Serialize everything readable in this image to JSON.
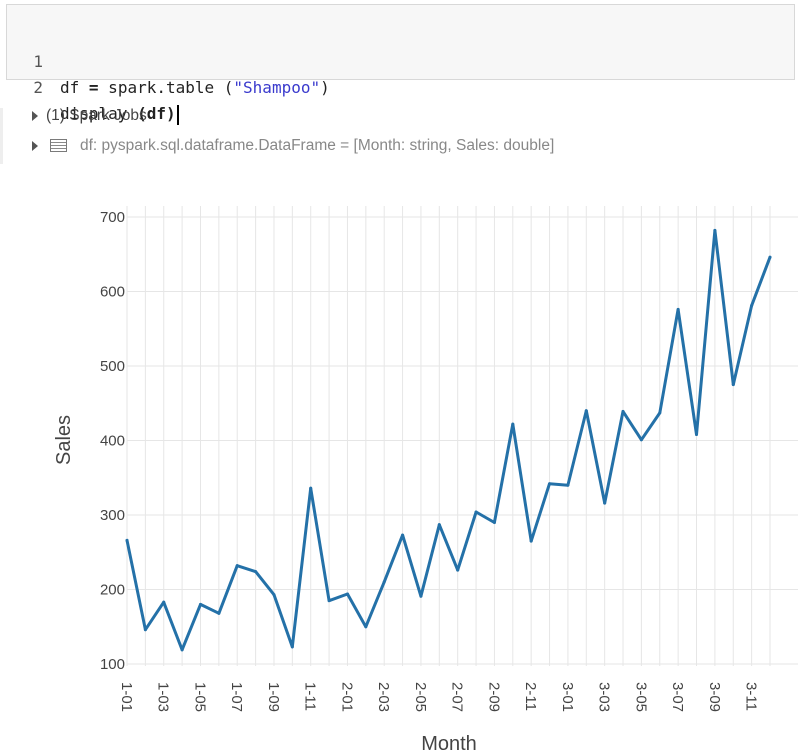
{
  "code_cell": {
    "line_numbers": [
      "1",
      "2"
    ],
    "line1": {
      "a": "df ",
      "op": "=",
      "b": " spark.table (",
      "str": "\"Shampoo\"",
      "c": ")"
    },
    "line2": {
      "a": "display ",
      "op": "(df)"
    }
  },
  "output": {
    "spark_jobs": "(1) Spark Jobs",
    "df_schema": "df:  pyspark.sql.dataframe.DataFrame = [Month: string, Sales: double]"
  },
  "colors": {
    "line": "#2471a8",
    "grid": "#e6e6e6"
  },
  "chart_data": {
    "type": "line",
    "xlabel": "Month",
    "ylabel": "Sales",
    "ylim": [
      100,
      700
    ],
    "yticks": [
      "100",
      "200",
      "300",
      "400",
      "500",
      "600",
      "700"
    ],
    "grid": true,
    "x": [
      "1-01",
      "1-02",
      "1-03",
      "1-04",
      "1-05",
      "1-06",
      "1-07",
      "1-08",
      "1-09",
      "1-10",
      "1-11",
      "1-12",
      "2-01",
      "2-02",
      "2-03",
      "2-04",
      "2-05",
      "2-06",
      "2-07",
      "2-08",
      "2-09",
      "2-10",
      "2-11",
      "2-12",
      "3-01",
      "3-02",
      "3-03",
      "3-04",
      "3-05",
      "3-06",
      "3-07",
      "3-08",
      "3-09",
      "3-10",
      "3-11",
      "3-12"
    ],
    "xtick_labels": [
      "1-01",
      "1-03",
      "1-05",
      "1-07",
      "1-09",
      "1-11",
      "2-01",
      "2-03",
      "2-05",
      "2-07",
      "2-09",
      "2-11",
      "3-01",
      "3-03",
      "3-05",
      "3-07",
      "3-09",
      "3-11"
    ],
    "series": [
      {
        "values": [
          266,
          146,
          183,
          119,
          180,
          168,
          232,
          224,
          193,
          123,
          336,
          185,
          194,
          150,
          210,
          273,
          191,
          287,
          226,
          304,
          290,
          422,
          265,
          342,
          340,
          440,
          316,
          439,
          401,
          437,
          576,
          408,
          682,
          475,
          581,
          646
        ]
      }
    ]
  }
}
